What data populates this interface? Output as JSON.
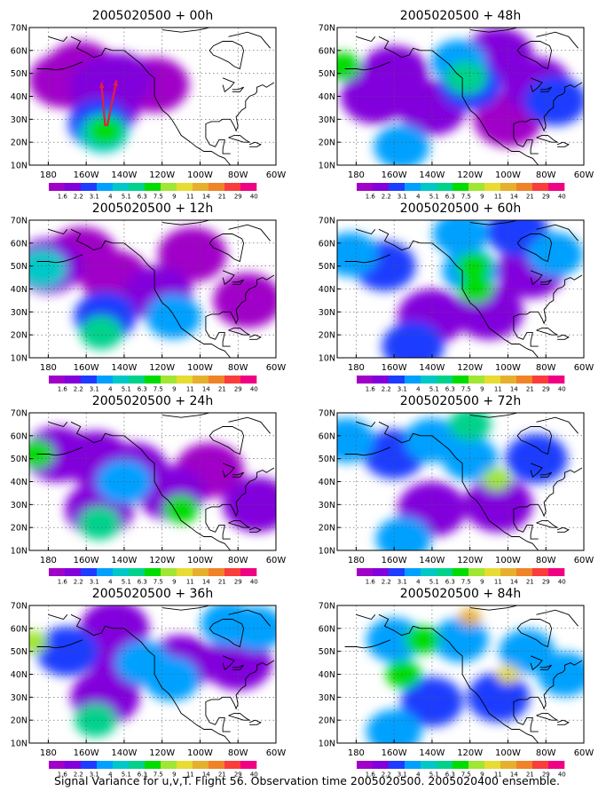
{
  "caption": "Signal Variance for u,v,T. Flight 56. Observation time 2005020500. 2005020400 ensemble.",
  "colorbar": {
    "levels": [
      "1.6",
      "2.2",
      "3.1",
      "4",
      "5.1",
      "6.3",
      "7.5",
      "9",
      "11",
      "14",
      "21",
      "29",
      "40"
    ],
    "colors": [
      "#a000c8",
      "#8200dc",
      "#1e3cff",
      "#00a0ff",
      "#00c8c8",
      "#00d28c",
      "#00dc00",
      "#a0e632",
      "#e6dc32",
      "#e6af2d",
      "#f08228",
      "#fa3c3c",
      "#f00082"
    ]
  },
  "map": {
    "x_ticks": [
      "180",
      "160W",
      "140W",
      "120W",
      "100W",
      "80W",
      "60W"
    ],
    "y_ticks": [
      "10N",
      "20N",
      "30N",
      "40N",
      "50N",
      "60N",
      "70N"
    ]
  },
  "chart_data": [
    {
      "type": "heatmap",
      "title": "2005020500 + 00h",
      "xlim": [
        -190,
        -60
      ],
      "ylim": [
        10,
        70
      ],
      "blobs": [
        {
          "lon": -172,
          "lat": 47,
          "value": 1.8
        },
        {
          "lon": -163,
          "lat": 52,
          "value": 1.8
        },
        {
          "lon": -151,
          "lat": 45,
          "value": 2.2
        },
        {
          "lon": -143,
          "lat": 47,
          "value": 2.2
        },
        {
          "lon": -150,
          "lat": 35,
          "value": 2.2
        },
        {
          "lon": -153,
          "lat": 28,
          "value": 3.1
        },
        {
          "lon": -151,
          "lat": 24,
          "value": 5.1
        },
        {
          "lon": -150,
          "lat": 25,
          "value": 7.5
        },
        {
          "lon": -124,
          "lat": 45,
          "value": 1.8
        }
      ],
      "arrows": [
        {
          "from_lon": -150,
          "from_lat": 27,
          "to_lon": -152,
          "to_lat": 46
        },
        {
          "from_lon": -149,
          "from_lat": 27,
          "to_lon": -144,
          "to_lat": 47
        }
      ]
    },
    {
      "type": "heatmap",
      "title": "2005020500 + 48h",
      "xlim": [
        -190,
        -60
      ],
      "ylim": [
        10,
        70
      ],
      "blobs": [
        {
          "lon": -160,
          "lat": 50,
          "value": 2.2
        },
        {
          "lon": -120,
          "lat": 45,
          "value": 3.1
        },
        {
          "lon": -85,
          "lat": 45,
          "value": 2.2
        },
        {
          "lon": -140,
          "lat": 35,
          "value": 2.2
        },
        {
          "lon": -100,
          "lat": 30,
          "value": 1.8
        },
        {
          "lon": -187,
          "lat": 53,
          "value": 7.5
        },
        {
          "lon": -122,
          "lat": 48,
          "value": 6.3
        },
        {
          "lon": -126,
          "lat": 55,
          "value": 4
        },
        {
          "lon": -156,
          "lat": 18,
          "value": 4
        },
        {
          "lon": -105,
          "lat": 58,
          "value": 2.2
        },
        {
          "lon": -75,
          "lat": 38,
          "value": 3.1
        },
        {
          "lon": -170,
          "lat": 40,
          "value": 2.2
        }
      ]
    },
    {
      "type": "heatmap",
      "title": "2005020500 + 12h",
      "xlim": [
        -190,
        -60
      ],
      "ylim": [
        10,
        70
      ],
      "blobs": [
        {
          "lon": -180,
          "lat": 50,
          "value": 2.2
        },
        {
          "lon": -183,
          "lat": 49,
          "value": 5.1
        },
        {
          "lon": -162,
          "lat": 55,
          "value": 1.8
        },
        {
          "lon": -145,
          "lat": 45,
          "value": 1.8
        },
        {
          "lon": -150,
          "lat": 28,
          "value": 3.1
        },
        {
          "lon": -152,
          "lat": 21,
          "value": 6.3
        },
        {
          "lon": -122,
          "lat": 38,
          "value": 2.2
        },
        {
          "lon": -114,
          "lat": 28,
          "value": 4
        },
        {
          "lon": -104,
          "lat": 55,
          "value": 1.8
        },
        {
          "lon": -75,
          "lat": 35,
          "value": 1.8
        }
      ]
    },
    {
      "type": "heatmap",
      "title": "2005020500 + 60h",
      "xlim": [
        -190,
        -60
      ],
      "ylim": [
        10,
        70
      ],
      "blobs": [
        {
          "lon": -165,
          "lat": 50,
          "value": 3.1
        },
        {
          "lon": -120,
          "lat": 48,
          "value": 4
        },
        {
          "lon": -88,
          "lat": 48,
          "value": 2.2
        },
        {
          "lon": -140,
          "lat": 28,
          "value": 2.2
        },
        {
          "lon": -110,
          "lat": 30,
          "value": 2.2
        },
        {
          "lon": -118,
          "lat": 50,
          "value": 7.5
        },
        {
          "lon": -117,
          "lat": 40,
          "value": 7.5
        },
        {
          "lon": -125,
          "lat": 64,
          "value": 4
        },
        {
          "lon": -183,
          "lat": 55,
          "value": 4
        },
        {
          "lon": -150,
          "lat": 15,
          "value": 3.1
        },
        {
          "lon": -75,
          "lat": 55,
          "value": 4
        },
        {
          "lon": -95,
          "lat": 65,
          "value": 3.1
        }
      ]
    },
    {
      "type": "heatmap",
      "title": "2005020500 + 24h",
      "xlim": [
        -190,
        -60
      ],
      "ylim": [
        10,
        70
      ],
      "blobs": [
        {
          "lon": -175,
          "lat": 52,
          "value": 2.2
        },
        {
          "lon": -155,
          "lat": 50,
          "value": 2.2
        },
        {
          "lon": -135,
          "lat": 45,
          "value": 2.2
        },
        {
          "lon": -153,
          "lat": 28,
          "value": 2.2
        },
        {
          "lon": -115,
          "lat": 35,
          "value": 2.2
        },
        {
          "lon": -186,
          "lat": 52,
          "value": 7.5
        },
        {
          "lon": -153,
          "lat": 22,
          "value": 6.3
        },
        {
          "lon": -110,
          "lat": 28,
          "value": 7.5
        },
        {
          "lon": -140,
          "lat": 40,
          "value": 4
        },
        {
          "lon": -70,
          "lat": 30,
          "value": 2.2
        },
        {
          "lon": -95,
          "lat": 45,
          "value": 1.8
        }
      ]
    },
    {
      "type": "heatmap",
      "title": "2005020500 + 72h",
      "xlim": [
        -190,
        -60
      ],
      "ylim": [
        10,
        70
      ],
      "blobs": [
        {
          "lon": -160,
          "lat": 52,
          "value": 3.1
        },
        {
          "lon": -120,
          "lat": 50,
          "value": 4
        },
        {
          "lon": -85,
          "lat": 50,
          "value": 3.1
        },
        {
          "lon": -140,
          "lat": 28,
          "value": 2.2
        },
        {
          "lon": -105,
          "lat": 30,
          "value": 2.2
        },
        {
          "lon": -106,
          "lat": 41,
          "value": 9
        },
        {
          "lon": -120,
          "lat": 65,
          "value": 6.3
        },
        {
          "lon": -185,
          "lat": 58,
          "value": 4
        },
        {
          "lon": -155,
          "lat": 15,
          "value": 4
        },
        {
          "lon": -140,
          "lat": 58,
          "value": 4
        }
      ]
    },
    {
      "type": "heatmap",
      "title": "2005020500 + 36h",
      "xlim": [
        -190,
        -60
      ],
      "ylim": [
        10,
        70
      ],
      "blobs": [
        {
          "lon": -170,
          "lat": 50,
          "value": 3.1
        },
        {
          "lon": -140,
          "lat": 45,
          "value": 2.2
        },
        {
          "lon": -110,
          "lat": 45,
          "value": 2.2
        },
        {
          "lon": -150,
          "lat": 30,
          "value": 2.2
        },
        {
          "lon": -80,
          "lat": 45,
          "value": 2.2
        },
        {
          "lon": -188,
          "lat": 54,
          "value": 9
        },
        {
          "lon": -155,
          "lat": 20,
          "value": 6.3
        },
        {
          "lon": -130,
          "lat": 45,
          "value": 4
        },
        {
          "lon": -115,
          "lat": 38,
          "value": 4
        },
        {
          "lon": -85,
          "lat": 62,
          "value": 4
        },
        {
          "lon": -70,
          "lat": 60,
          "value": 4
        },
        {
          "lon": -145,
          "lat": 60,
          "value": 2.2
        }
      ]
    },
    {
      "type": "heatmap",
      "title": "2005020500 + 84h",
      "xlim": [
        -190,
        -60
      ],
      "ylim": [
        10,
        70
      ],
      "blobs": [
        {
          "lon": -160,
          "lat": 55,
          "value": 4
        },
        {
          "lon": -125,
          "lat": 55,
          "value": 4
        },
        {
          "lon": -90,
          "lat": 50,
          "value": 4
        },
        {
          "lon": -140,
          "lat": 28,
          "value": 3.1
        },
        {
          "lon": -105,
          "lat": 30,
          "value": 3.1
        },
        {
          "lon": -120,
          "lat": 65,
          "value": 14
        },
        {
          "lon": -100,
          "lat": 40,
          "value": 11
        },
        {
          "lon": -155,
          "lat": 40,
          "value": 7.5
        },
        {
          "lon": -145,
          "lat": 55,
          "value": 7.5
        },
        {
          "lon": -160,
          "lat": 15,
          "value": 4
        },
        {
          "lon": -70,
          "lat": 40,
          "value": 4
        }
      ]
    }
  ]
}
